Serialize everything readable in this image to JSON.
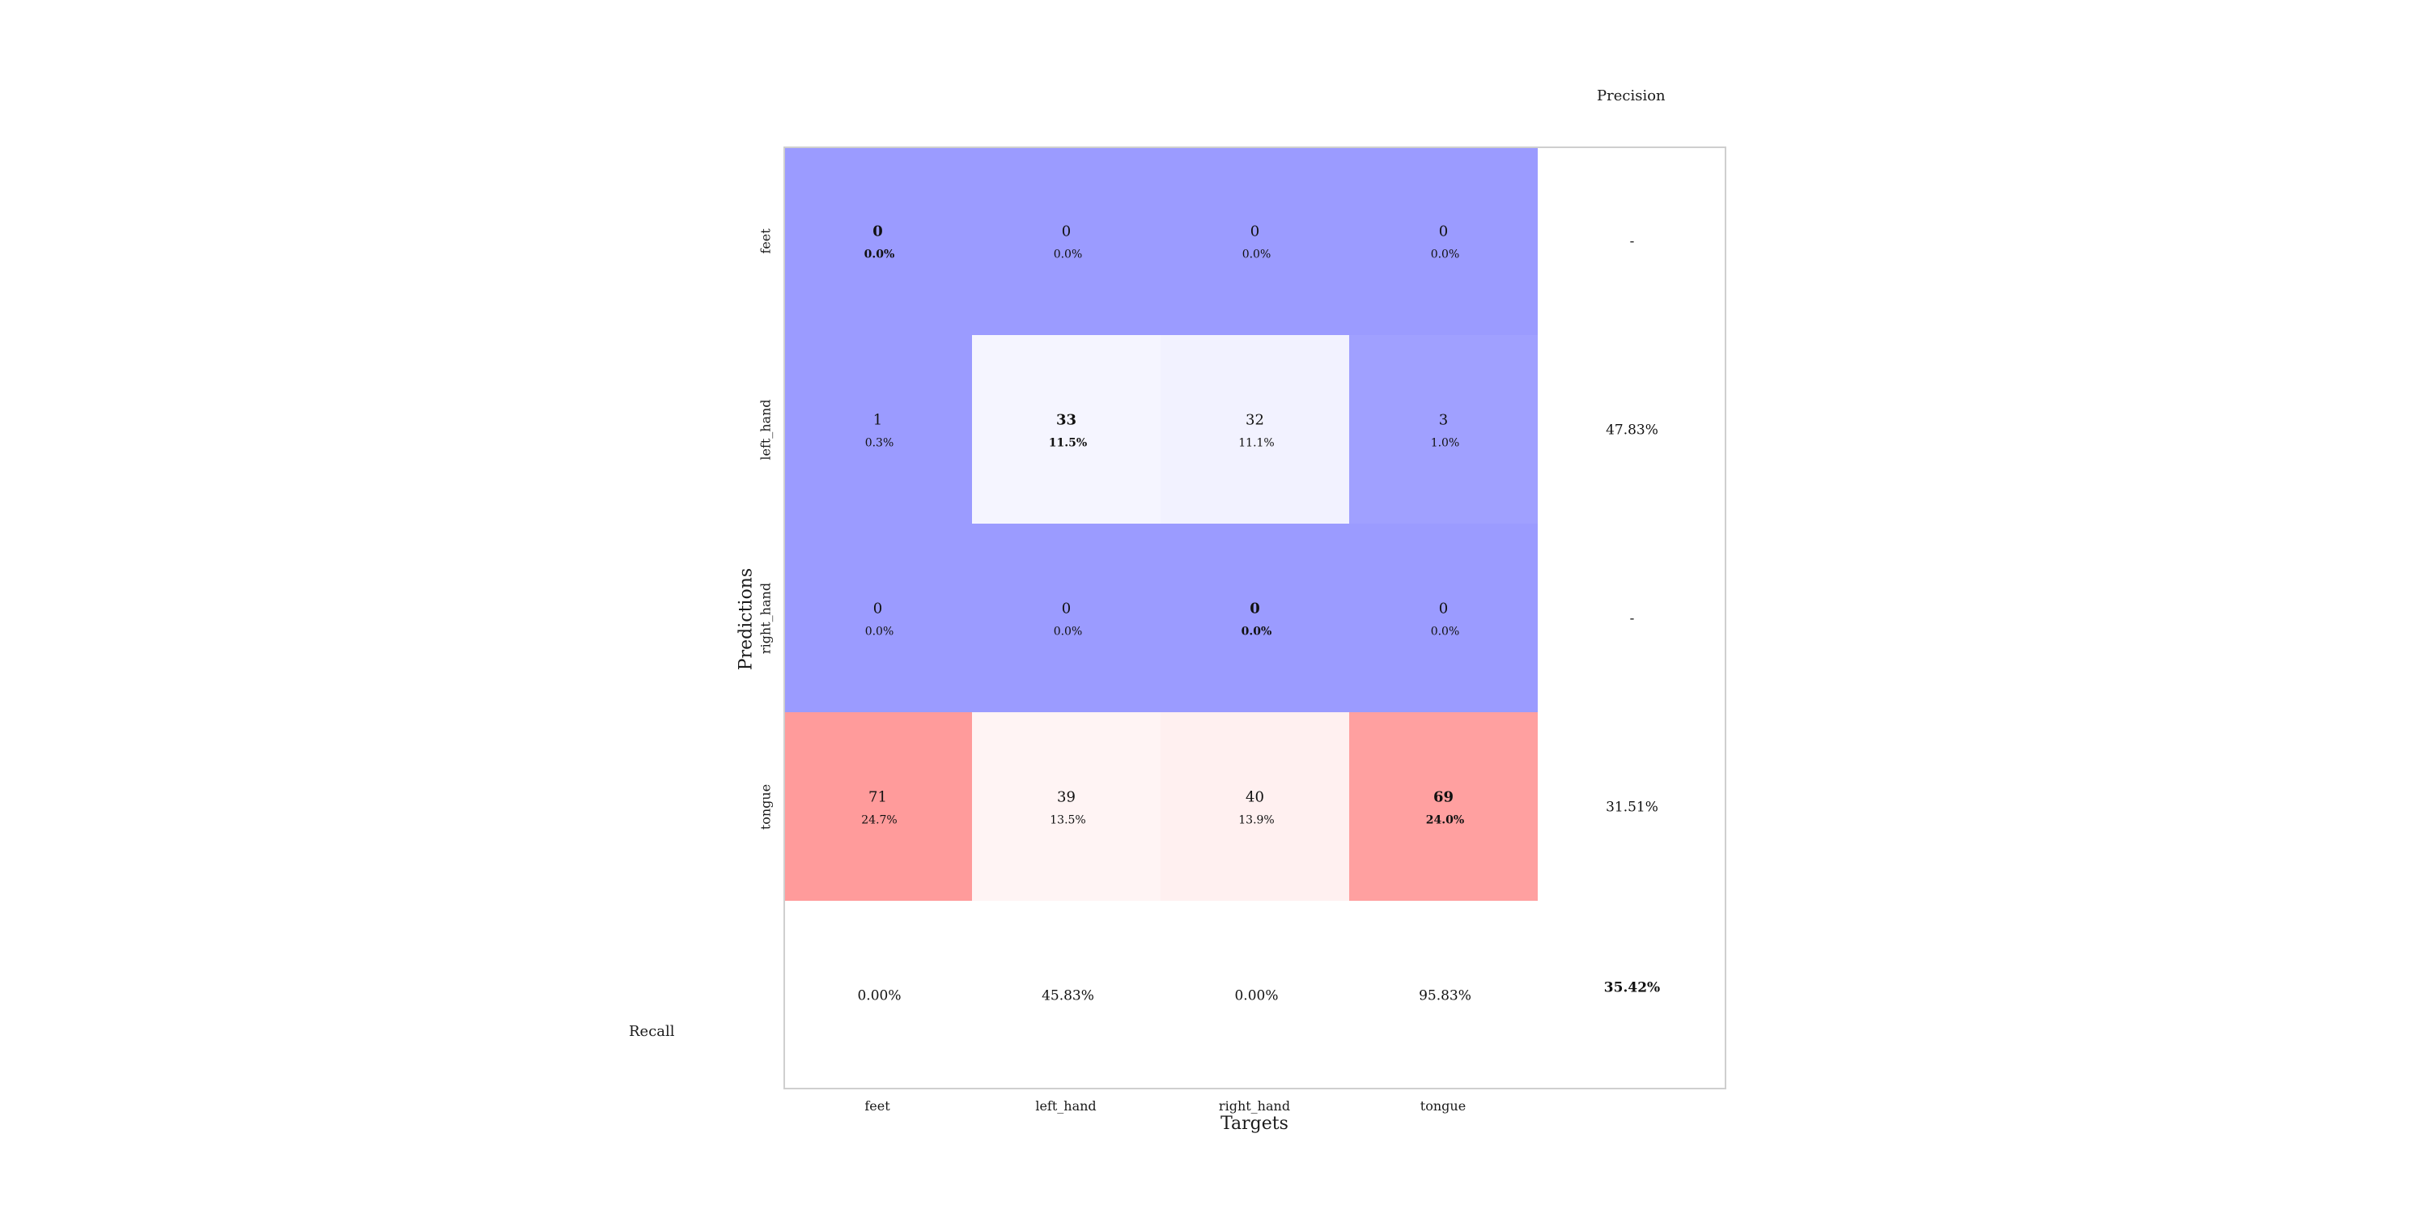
{
  "chart_data": {
    "type": "heatmap",
    "xlabel": "Targets",
    "ylabel": "Predictions",
    "x_categories": [
      "feet",
      "left_hand",
      "right_hand",
      "tongue"
    ],
    "y_categories": [
      "feet",
      "left_hand",
      "right_hand",
      "tongue"
    ],
    "matrix": [
      [
        0,
        0,
        0,
        0
      ],
      [
        1,
        33,
        32,
        3
      ],
      [
        0,
        0,
        0,
        0
      ],
      [
        71,
        39,
        40,
        69
      ]
    ],
    "percent_labels": [
      [
        "0.0%",
        "0.0%",
        "0.0%",
        "0.0%"
      ],
      [
        "0.3%",
        "11.5%",
        "11.1%",
        "1.0%"
      ],
      [
        "0.0%",
        "0.0%",
        "0.0%",
        "0.0%"
      ],
      [
        "24.7%",
        "13.5%",
        "13.9%",
        "24.0%"
      ]
    ],
    "cell_colors": [
      [
        "#9b9bff",
        "#9b9bff",
        "#9b9bff",
        "#9b9bff"
      ],
      [
        "#9b9bff",
        "#f5f5ff",
        "#f2f2ff",
        "#a0a0ff"
      ],
      [
        "#9b9bff",
        "#9b9bff",
        "#9b9bff",
        "#9b9bff"
      ],
      [
        "#ff9b9b",
        "#fff4f4",
        "#fff0f0",
        "#ffa0a0"
      ]
    ],
    "precision_title": "Precision",
    "precision": [
      "-",
      "47.83%",
      "-",
      "31.51%"
    ],
    "recall_title": "Recall",
    "recall": [
      "0.00%",
      "45.83%",
      "0.00%",
      "95.83%"
    ],
    "overall_accuracy": "35.42%"
  }
}
